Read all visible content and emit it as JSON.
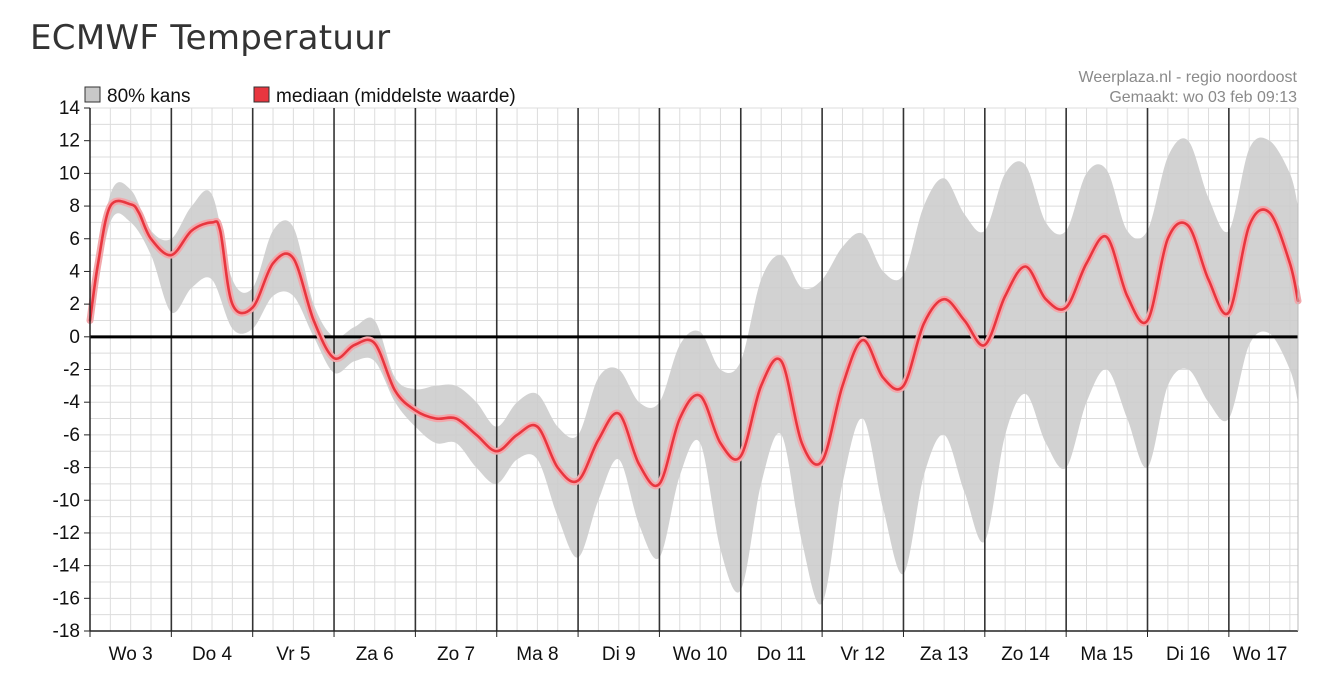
{
  "page": {
    "title": "ECMWF Temperatuur"
  },
  "source": {
    "line1": "Weerplaza.nl - regio noordoost",
    "line2": "Gemaakt: wo 03 feb 09:13"
  },
  "legend": {
    "band_label": "80% kans",
    "median_label": "mediaan (middelste waarde)"
  },
  "colors": {
    "band": "#cccccc",
    "band_swatch": "#c8c8c8",
    "median": "#e8363f",
    "median_halo": "#f2a7ab",
    "zero_line": "#000000",
    "grid": "#dcdcdc",
    "day_line": "#333333"
  },
  "chart_data": {
    "type": "area",
    "title": "ECMWF Temperatuur",
    "xlabel": "",
    "ylabel": "",
    "ylim": [
      -18,
      14
    ],
    "yticks": [
      14,
      12,
      10,
      8,
      6,
      4,
      2,
      0,
      -2,
      -4,
      -6,
      -8,
      -10,
      -12,
      -14,
      -16,
      -18
    ],
    "xlim": [
      0,
      14.85
    ],
    "x_unit": "days from start of Wo 3",
    "categories": [
      "Wo 3",
      "Do 4",
      "Vr 5",
      "Za 6",
      "Zo 7",
      "Ma 8",
      "Di 9",
      "Wo 10",
      "Do 11",
      "Vr 12",
      "Za 13",
      "Zo 14",
      "Ma 15",
      "Di 16",
      "Wo 17"
    ],
    "grid": true,
    "legend_position": "top-left",
    "series": [
      {
        "name": "mediaan (middelste waarde)",
        "kind": "line",
        "points": [
          [
            0.0,
            1.0
          ],
          [
            0.1,
            4.5
          ],
          [
            0.25,
            8.0
          ],
          [
            0.5,
            8.1
          ],
          [
            0.6,
            7.6
          ],
          [
            0.75,
            6.0
          ],
          [
            1.0,
            5.0
          ],
          [
            1.25,
            6.5
          ],
          [
            1.5,
            7.0
          ],
          [
            1.6,
            6.5
          ],
          [
            1.75,
            2.0
          ],
          [
            2.0,
            1.8
          ],
          [
            2.25,
            4.5
          ],
          [
            2.5,
            4.8
          ],
          [
            2.75,
            1.0
          ],
          [
            3.0,
            -1.3
          ],
          [
            3.25,
            -0.5
          ],
          [
            3.5,
            -0.4
          ],
          [
            3.75,
            -3.3
          ],
          [
            4.0,
            -4.5
          ],
          [
            4.25,
            -5.0
          ],
          [
            4.5,
            -5.0
          ],
          [
            4.75,
            -6.0
          ],
          [
            5.0,
            -7.0
          ],
          [
            5.25,
            -6.0
          ],
          [
            5.5,
            -5.5
          ],
          [
            5.75,
            -8.0
          ],
          [
            6.0,
            -8.8
          ],
          [
            6.25,
            -6.3
          ],
          [
            6.5,
            -4.7
          ],
          [
            6.75,
            -7.8
          ],
          [
            7.0,
            -9.0
          ],
          [
            7.25,
            -5.0
          ],
          [
            7.5,
            -3.6
          ],
          [
            7.75,
            -6.5
          ],
          [
            8.0,
            -7.3
          ],
          [
            8.25,
            -3.0
          ],
          [
            8.5,
            -1.5
          ],
          [
            8.75,
            -6.5
          ],
          [
            9.0,
            -7.6
          ],
          [
            9.25,
            -3.0
          ],
          [
            9.5,
            -0.2
          ],
          [
            9.75,
            -2.5
          ],
          [
            10.0,
            -3.0
          ],
          [
            10.25,
            0.8
          ],
          [
            10.5,
            2.3
          ],
          [
            10.75,
            1.0
          ],
          [
            11.0,
            -0.5
          ],
          [
            11.25,
            2.5
          ],
          [
            11.5,
            4.3
          ],
          [
            11.75,
            2.3
          ],
          [
            12.0,
            1.8
          ],
          [
            12.25,
            4.5
          ],
          [
            12.5,
            6.1
          ],
          [
            12.75,
            2.5
          ],
          [
            13.0,
            1.0
          ],
          [
            13.25,
            6.0
          ],
          [
            13.5,
            6.8
          ],
          [
            13.75,
            3.5
          ],
          [
            14.0,
            1.5
          ],
          [
            14.25,
            6.8
          ],
          [
            14.5,
            7.6
          ],
          [
            14.75,
            4.5
          ],
          [
            14.85,
            2.2
          ]
        ]
      },
      {
        "name": "80% kans",
        "kind": "band",
        "points": [
          [
            0.0,
            0.5,
            1.5
          ],
          [
            0.25,
            7.0,
            8.7
          ],
          [
            0.5,
            7.0,
            9.0
          ],
          [
            0.75,
            5.0,
            6.5
          ],
          [
            1.0,
            1.5,
            6.0
          ],
          [
            1.25,
            3.0,
            8.0
          ],
          [
            1.5,
            3.5,
            8.7
          ],
          [
            1.75,
            0.5,
            3.5
          ],
          [
            2.0,
            0.5,
            3.0
          ],
          [
            2.25,
            2.5,
            6.5
          ],
          [
            2.5,
            2.5,
            6.7
          ],
          [
            2.75,
            0.0,
            2.0
          ],
          [
            3.0,
            -2.2,
            0.0
          ],
          [
            3.25,
            -1.5,
            0.6
          ],
          [
            3.5,
            -1.5,
            1.0
          ],
          [
            3.75,
            -4.0,
            -2.5
          ],
          [
            4.0,
            -5.5,
            -3.2
          ],
          [
            4.25,
            -6.5,
            -3.0
          ],
          [
            4.5,
            -6.5,
            -3.0
          ],
          [
            4.75,
            -8.0,
            -4.0
          ],
          [
            5.0,
            -9.0,
            -5.5
          ],
          [
            5.25,
            -7.5,
            -4.0
          ],
          [
            5.5,
            -7.5,
            -3.5
          ],
          [
            5.75,
            -11.0,
            -5.5
          ],
          [
            6.0,
            -13.5,
            -6.0
          ],
          [
            6.25,
            -10.0,
            -2.5
          ],
          [
            6.5,
            -7.5,
            -2.0
          ],
          [
            6.75,
            -11.5,
            -4.0
          ],
          [
            7.0,
            -13.5,
            -4.0
          ],
          [
            7.25,
            -8.5,
            -0.5
          ],
          [
            7.5,
            -6.5,
            0.3
          ],
          [
            7.75,
            -13.0,
            -2.0
          ],
          [
            8.0,
            -15.5,
            -1.5
          ],
          [
            8.25,
            -9.0,
            3.5
          ],
          [
            8.5,
            -6.0,
            5.0
          ],
          [
            8.75,
            -12.5,
            3.0
          ],
          [
            9.0,
            -16.3,
            3.5
          ],
          [
            9.25,
            -9.0,
            5.5
          ],
          [
            9.5,
            -5.0,
            6.3
          ],
          [
            9.75,
            -10.5,
            4.0
          ],
          [
            10.0,
            -14.5,
            3.8
          ],
          [
            10.25,
            -8.5,
            8.0
          ],
          [
            10.5,
            -6.0,
            9.7
          ],
          [
            10.75,
            -9.5,
            7.5
          ],
          [
            11.0,
            -12.5,
            6.5
          ],
          [
            11.25,
            -6.0,
            10.0
          ],
          [
            11.5,
            -3.5,
            10.5
          ],
          [
            11.75,
            -6.5,
            7.0
          ],
          [
            12.0,
            -8.0,
            6.5
          ],
          [
            12.25,
            -4.0,
            10.0
          ],
          [
            12.5,
            -2.0,
            10.2
          ],
          [
            12.75,
            -5.0,
            6.5
          ],
          [
            13.0,
            -8.0,
            6.5
          ],
          [
            13.25,
            -3.0,
            11.0
          ],
          [
            13.5,
            -2.0,
            12.0
          ],
          [
            13.75,
            -4.0,
            8.5
          ],
          [
            14.0,
            -5.0,
            6.5
          ],
          [
            14.25,
            -0.5,
            11.5
          ],
          [
            14.5,
            0.2,
            12.0
          ],
          [
            14.75,
            -2.0,
            10.0
          ],
          [
            14.85,
            -4.0,
            8.0
          ]
        ]
      }
    ]
  }
}
